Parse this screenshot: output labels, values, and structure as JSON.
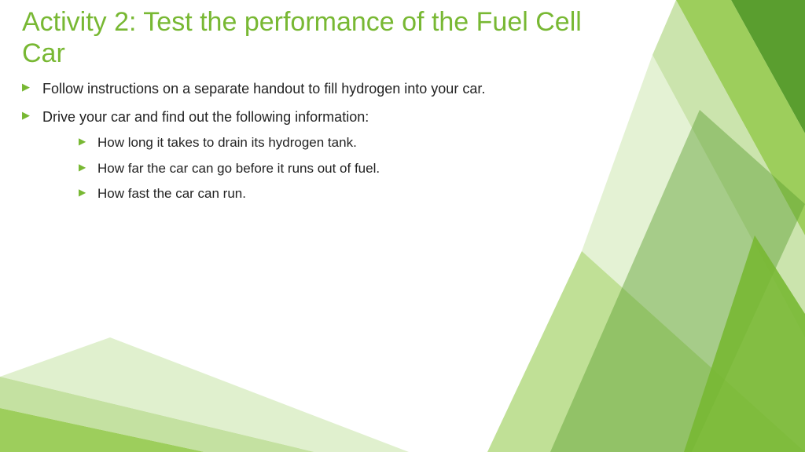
{
  "colors": {
    "accent": "#78b833",
    "accent_dark": "#5a9e2f",
    "accent_mid": "#8cc63f",
    "accent_light": "#b5d98a",
    "accent_pale": "#d8ecc2",
    "text": "#222222",
    "background": "#ffffff"
  },
  "typography": {
    "title_fontsize": 34,
    "body_fontsize": 18,
    "sub_fontsize": 17,
    "font_family": "Segoe UI"
  },
  "title": "Activity 2: Test the performance of the Fuel Cell Car",
  "bullets": [
    {
      "text": "Follow instructions on a separate handout to fill hydrogen into your car."
    },
    {
      "text": "Drive your car and find out the following information:",
      "children": [
        "How long it takes to drain its hydrogen tank.",
        "How far the car can go before it runs out of fuel.",
        "How fast the car can run."
      ]
    }
  ]
}
